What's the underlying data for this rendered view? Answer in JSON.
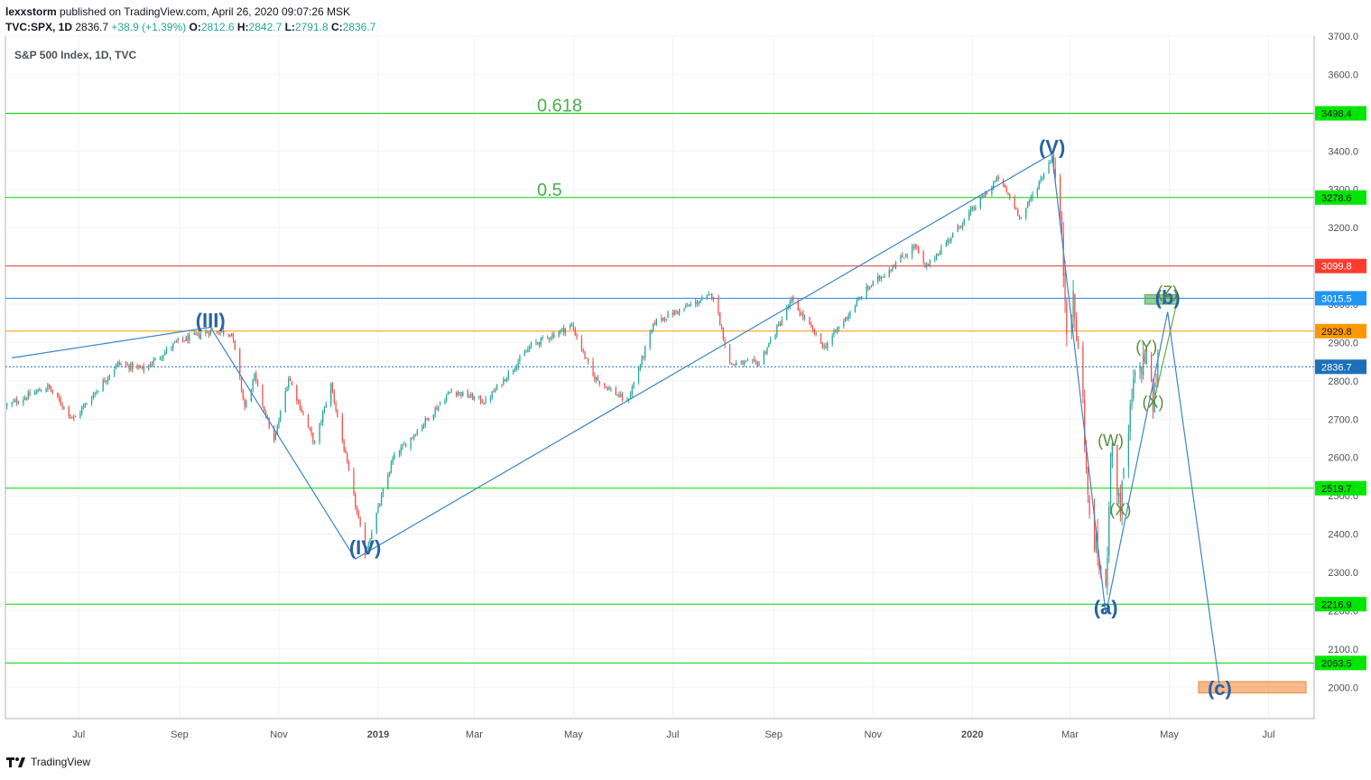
{
  "header": {
    "user": "lexxstorm",
    "published": " published on TradingView.com, April 26, 2020 09:07:26 MSK",
    "symbol": "TVC:SPX, 1D",
    "last": "2836.7",
    "change": "+38.9 (+1.39%)",
    "o_label": "O:",
    "o": "2812.6",
    "h_label": "H:",
    "h": "2842.7",
    "l_label": "L:",
    "l": "2791.8",
    "c_label": "C:",
    "c": "2836.7"
  },
  "footer": {
    "brand": "TradingView"
  },
  "chart_data": {
    "type": "candlestick",
    "title": "S&P 500 Index, 1D, TVC",
    "ylim": [
      1918.2,
      3700
    ],
    "yticks": [
      2000,
      2100,
      2200,
      2300,
      2400,
      2500,
      2600,
      2700,
      2800,
      2900,
      3000,
      3100,
      3200,
      3300,
      3400,
      3500,
      3600,
      3700
    ],
    "xticks": [
      "Jul",
      "Sep",
      "Nov",
      "2019",
      "Mar",
      "May",
      "Jul",
      "Sep",
      "Nov",
      "2020",
      "Mar",
      "May",
      "Jul"
    ],
    "colors": {
      "up": "#26a69a",
      "down": "#ef5350",
      "wave": "#2962a5",
      "subwave": "#5b8c3a"
    },
    "horizontal_levels": [
      {
        "price": 3498.4,
        "label": "3498.4",
        "color": "#00d600",
        "tag_bg": "#00e600"
      },
      {
        "price": 3278.6,
        "label": "3278.6",
        "color": "#00d600",
        "tag_bg": "#00e600"
      },
      {
        "price": 3099.8,
        "label": "3099.8",
        "color": "#e53935",
        "tag_bg": "#ff3b30"
      },
      {
        "price": 3015.5,
        "label": "3015.5",
        "color": "#1e88e5",
        "tag_bg": "#2196f3"
      },
      {
        "price": 2929.8,
        "label": "2929.8",
        "color": "#ff9800",
        "tag_bg": "#ff9800"
      },
      {
        "price": 2836.7,
        "label": "2836.7",
        "color": "#1e6fb8",
        "tag_bg": "#1e6fb8",
        "dotted": true
      },
      {
        "price": 2519.7,
        "label": "2519.7",
        "color": "#00d600",
        "tag_bg": "#00e600"
      },
      {
        "price": 2216.9,
        "label": "2216.9",
        "color": "#00d600",
        "tag_bg": "#00e600"
      },
      {
        "price": 2063.5,
        "label": "2063.5",
        "color": "#00d600",
        "tag_bg": "#00e600"
      }
    ],
    "fib_labels": [
      {
        "text": "0.618",
        "price": 3498.4
      },
      {
        "text": "0.5",
        "price": 3278.6
      }
    ],
    "waves": [
      {
        "text": "(III)",
        "date": "2018-09-20",
        "price": 2940
      },
      {
        "text": "(IV)",
        "date": "2018-12-24",
        "price": 2347
      },
      {
        "text": "(V)",
        "date": "2020-02-19",
        "price": 3393
      },
      {
        "text": "(a)",
        "date": "2020-03-23",
        "price": 2191
      },
      {
        "text": "(b)",
        "date": "2020-04-30",
        "price": 3000
      },
      {
        "text": "(c)",
        "date": "2020-06-01",
        "price": 1980
      }
    ],
    "subwaves": [
      {
        "text": "(W)",
        "date": "2020-03-26",
        "price": 2630
      },
      {
        "text": "(X)",
        "date": "2020-04-01",
        "price": 2450
      },
      {
        "text": "(Y)",
        "date": "2020-04-17",
        "price": 2875
      },
      {
        "text": "(X)",
        "date": "2020-04-21",
        "price": 2730
      },
      {
        "text": "(Z)",
        "date": "2020-04-30",
        "price": 3018
      }
    ],
    "wave_path": [
      {
        "date": "2018-05-21",
        "price": 2860
      },
      {
        "date": "2018-09-20",
        "price": 2940
      },
      {
        "date": "2018-12-18",
        "price": 2335
      },
      {
        "date": "2020-02-19",
        "price": 3393
      },
      {
        "date": "2020-03-23",
        "price": 2191
      },
      {
        "date": "2020-04-30",
        "price": 2980
      },
      {
        "date": "2020-06-01",
        "price": 2000
      }
    ],
    "subwave_path": [
      {
        "date": "2020-04-21",
        "price": 2736
      },
      {
        "date": "2020-05-06",
        "price": 3010
      }
    ],
    "zones": [
      {
        "name": "target-zone-b",
        "from": "2020-04-16",
        "to": "2020-05-06",
        "top": 3025,
        "bottom": 3000,
        "color": "#4caf50"
      },
      {
        "name": "target-zone-c",
        "from": "2020-05-19",
        "to": "2020-07-24",
        "top": 2015,
        "bottom": 1985,
        "color": "#f08a3c"
      }
    ],
    "xaxis": {
      "start": "2018-05-17",
      "end": "2020-07-29"
    },
    "anchors": [
      {
        "date": "2018-05-18",
        "price": 2735
      },
      {
        "date": "2018-06-12",
        "price": 2785
      },
      {
        "date": "2018-06-28",
        "price": 2700
      },
      {
        "date": "2018-07-25",
        "price": 2845
      },
      {
        "date": "2018-08-10",
        "price": 2830
      },
      {
        "date": "2018-08-30",
        "price": 2900
      },
      {
        "date": "2018-09-20",
        "price": 2930
      },
      {
        "date": "2018-10-03",
        "price": 2925
      },
      {
        "date": "2018-10-11",
        "price": 2730
      },
      {
        "date": "2018-10-17",
        "price": 2810
      },
      {
        "date": "2018-10-29",
        "price": 2640
      },
      {
        "date": "2018-11-07",
        "price": 2810
      },
      {
        "date": "2018-11-23",
        "price": 2635
      },
      {
        "date": "2018-12-03",
        "price": 2790
      },
      {
        "date": "2018-12-24",
        "price": 2351
      },
      {
        "date": "2019-01-10",
        "price": 2596
      },
      {
        "date": "2019-02-15",
        "price": 2775
      },
      {
        "date": "2019-03-08",
        "price": 2745
      },
      {
        "date": "2019-04-05",
        "price": 2892
      },
      {
        "date": "2019-04-30",
        "price": 2945
      },
      {
        "date": "2019-05-13",
        "price": 2812
      },
      {
        "date": "2019-06-03",
        "price": 2744
      },
      {
        "date": "2019-06-20",
        "price": 2955
      },
      {
        "date": "2019-07-26",
        "price": 3025
      },
      {
        "date": "2019-08-05",
        "price": 2844
      },
      {
        "date": "2019-08-23",
        "price": 2847
      },
      {
        "date": "2019-09-12",
        "price": 3010
      },
      {
        "date": "2019-10-02",
        "price": 2887
      },
      {
        "date": "2019-10-28",
        "price": 3039
      },
      {
        "date": "2019-11-27",
        "price": 3153
      },
      {
        "date": "2019-12-03",
        "price": 3093
      },
      {
        "date": "2020-01-17",
        "price": 3330
      },
      {
        "date": "2020-01-31",
        "price": 3225
      },
      {
        "date": "2020-02-19",
        "price": 3386
      },
      {
        "date": "2020-02-24",
        "price": 3225
      },
      {
        "date": "2020-02-28",
        "price": 2954
      },
      {
        "date": "2020-03-03",
        "price": 3003
      },
      {
        "date": "2020-03-09",
        "price": 2746
      },
      {
        "date": "2020-03-12",
        "price": 2480
      },
      {
        "date": "2020-03-16",
        "price": 2386
      },
      {
        "date": "2020-03-23",
        "price": 2237
      },
      {
        "date": "2020-03-26",
        "price": 2630
      },
      {
        "date": "2020-04-01",
        "price": 2470
      },
      {
        "date": "2020-04-09",
        "price": 2789
      },
      {
        "date": "2020-04-17",
        "price": 2875
      },
      {
        "date": "2020-04-21",
        "price": 2737
      },
      {
        "date": "2020-04-24",
        "price": 2836.7
      }
    ]
  }
}
